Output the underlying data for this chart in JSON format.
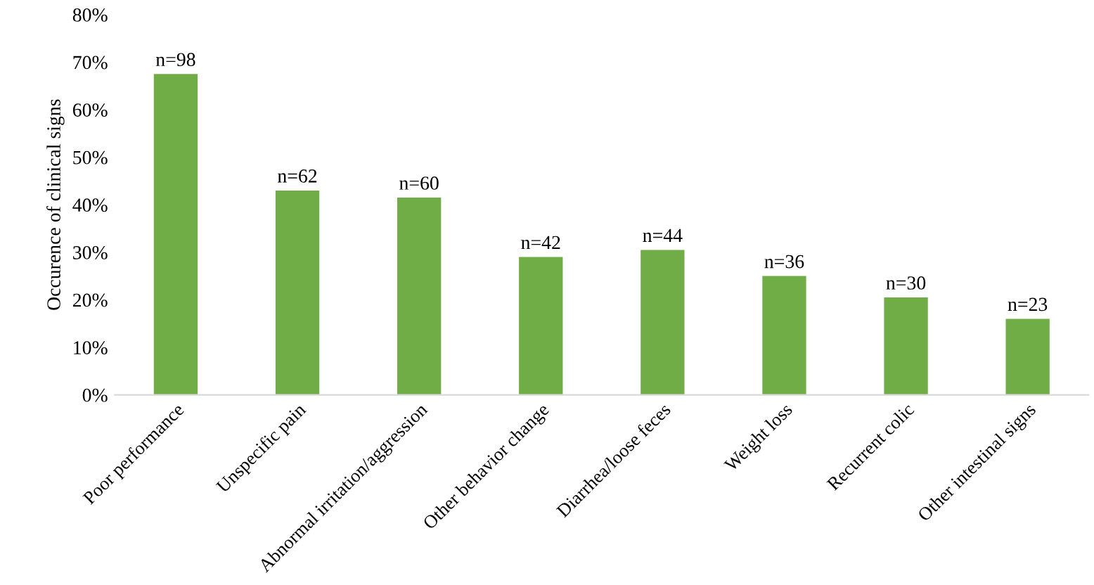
{
  "chart_data": {
    "type": "bar",
    "ylabel": "Occurence of clinical signs",
    "categories": [
      "Poor performance",
      "Unspecific pain",
      "Abnormal irritation/aggression",
      "Other behavior change",
      "Diarrhea/loose feces",
      "Weight loss",
      "Recurrent colic",
      "Other intestinal signs"
    ],
    "values": [
      67.5,
      43,
      41.5,
      29,
      30.5,
      25,
      20.5,
      16
    ],
    "annotations": [
      {
        "text": "n=98",
        "x": "Poor performance",
        "y": 67.5
      },
      {
        "text": "n=62",
        "x": "Unspecific pain",
        "y": 43
      },
      {
        "text": "n=60",
        "x": "Abnormal irritation/aggression",
        "y": 41.5
      },
      {
        "text": "n=42",
        "x": "Other behavior change",
        "y": 29
      },
      {
        "text": "n=44",
        "x": "Diarrhea/loose feces",
        "y": 30.5
      },
      {
        "text": "n=36",
        "x": "Weight loss",
        "y": 25
      },
      {
        "text": "n=30",
        "x": "Recurrent colic",
        "y": 20.5
      },
      {
        "text": "n=23",
        "x": "Other intestinal signs",
        "y": 16
      }
    ],
    "color": "#70ad47",
    "ylim": [
      0,
      80
    ],
    "yticks": [
      {
        "value": 0,
        "label": "0%"
      },
      {
        "value": 10,
        "label": "10%"
      },
      {
        "value": 20,
        "label": "20%"
      },
      {
        "value": 30,
        "label": "30%"
      },
      {
        "value": 40,
        "label": "40%"
      },
      {
        "value": 50,
        "label": "50%"
      },
      {
        "value": 60,
        "label": "60%"
      },
      {
        "value": 70,
        "label": "70%"
      },
      {
        "value": 80,
        "label": "80%"
      }
    ],
    "grid": false
  }
}
